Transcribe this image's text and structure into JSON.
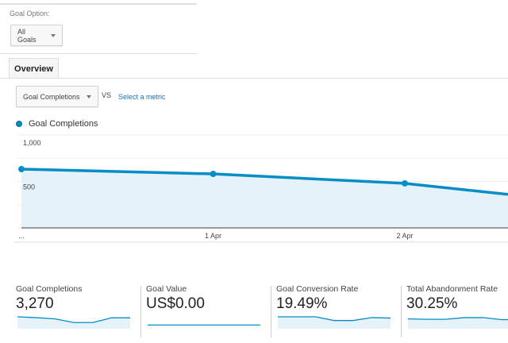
{
  "goal_option": {
    "label": "Goal Option:",
    "selected": "All Goals"
  },
  "tabs": [
    {
      "label": "Overview",
      "active": true
    }
  ],
  "metric_picker": {
    "selected": "Goal Completions",
    "vs_label": "VS",
    "second_metric_link": "Select a metric"
  },
  "colors": {
    "series": "#058dc7",
    "fill": "#e6f2f9",
    "link": "#1a6fb5"
  },
  "chart_data": {
    "type": "area",
    "legend": [
      "Goal Completions"
    ],
    "legend_placement": "top-left",
    "x_tick_labels": [
      "...",
      "1 Apr",
      "2 Apr"
    ],
    "y_tick_labels": [
      "1,000",
      "500"
    ],
    "ylim": [
      0,
      1000
    ],
    "grid": true,
    "series": [
      {
        "name": "Goal Completions",
        "values": [
          632,
          581,
          479,
          260
        ]
      }
    ]
  },
  "kpis": [
    {
      "title": "Goal Completions",
      "value": "3,270",
      "spark": [
        5,
        4.6,
        4,
        2.2,
        2.2,
        4.5,
        4.5
      ]
    },
    {
      "title": "Goal Value",
      "value": "US$0.00",
      "spark": [
        1,
        1,
        1,
        1,
        1,
        1,
        1
      ]
    },
    {
      "title": "Goal Conversion Rate",
      "value": "19.49%",
      "spark": [
        5,
        5,
        5,
        3.2,
        3.2,
        4.6,
        4.4
      ]
    },
    {
      "title": "Total Abandonment Rate",
      "value": "30.25%",
      "spark": [
        4,
        3.8,
        3.8,
        4.6,
        4.6,
        3.6,
        3.6
      ]
    }
  ]
}
